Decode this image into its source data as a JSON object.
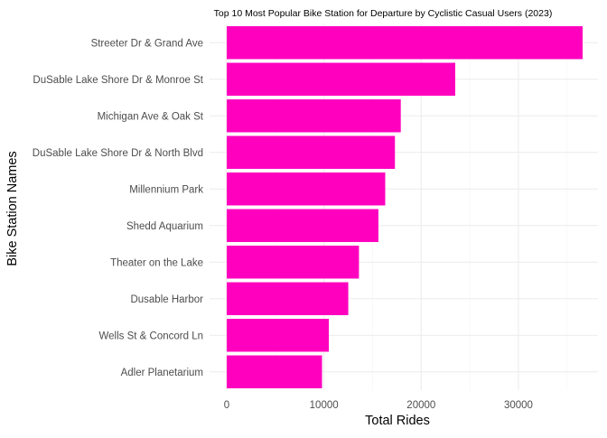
{
  "chart_data": {
    "type": "bar",
    "orientation": "horizontal",
    "title": "Top 10 Most Popular Bike Station for Departure by Cyclistic Casual Users (2023)",
    "xlabel": "Total Rides",
    "ylabel": "Bike Station Names",
    "categories": [
      "Streeter Dr & Grand Ave",
      "DuSable Lake Shore Dr & Monroe St",
      "Michigan Ave & Oak St",
      "DuSable Lake Shore Dr & North Blvd",
      "Millennium Park",
      "Shedd Aquarium",
      "Theater on the Lake",
      "Dusable Harbor",
      "Wells St & Concord Ln",
      "Adler Planetarium"
    ],
    "values": [
      36600,
      23500,
      17900,
      17300,
      16300,
      15600,
      13600,
      12500,
      10500,
      9800
    ],
    "xlim": [
      0,
      37000
    ],
    "xticks": [
      0,
      10000,
      20000,
      30000
    ],
    "xtick_labels": [
      "0",
      "10000",
      "20000",
      "30000"
    ],
    "bar_color": "#ff00bf",
    "grid": true,
    "legend": "none"
  }
}
